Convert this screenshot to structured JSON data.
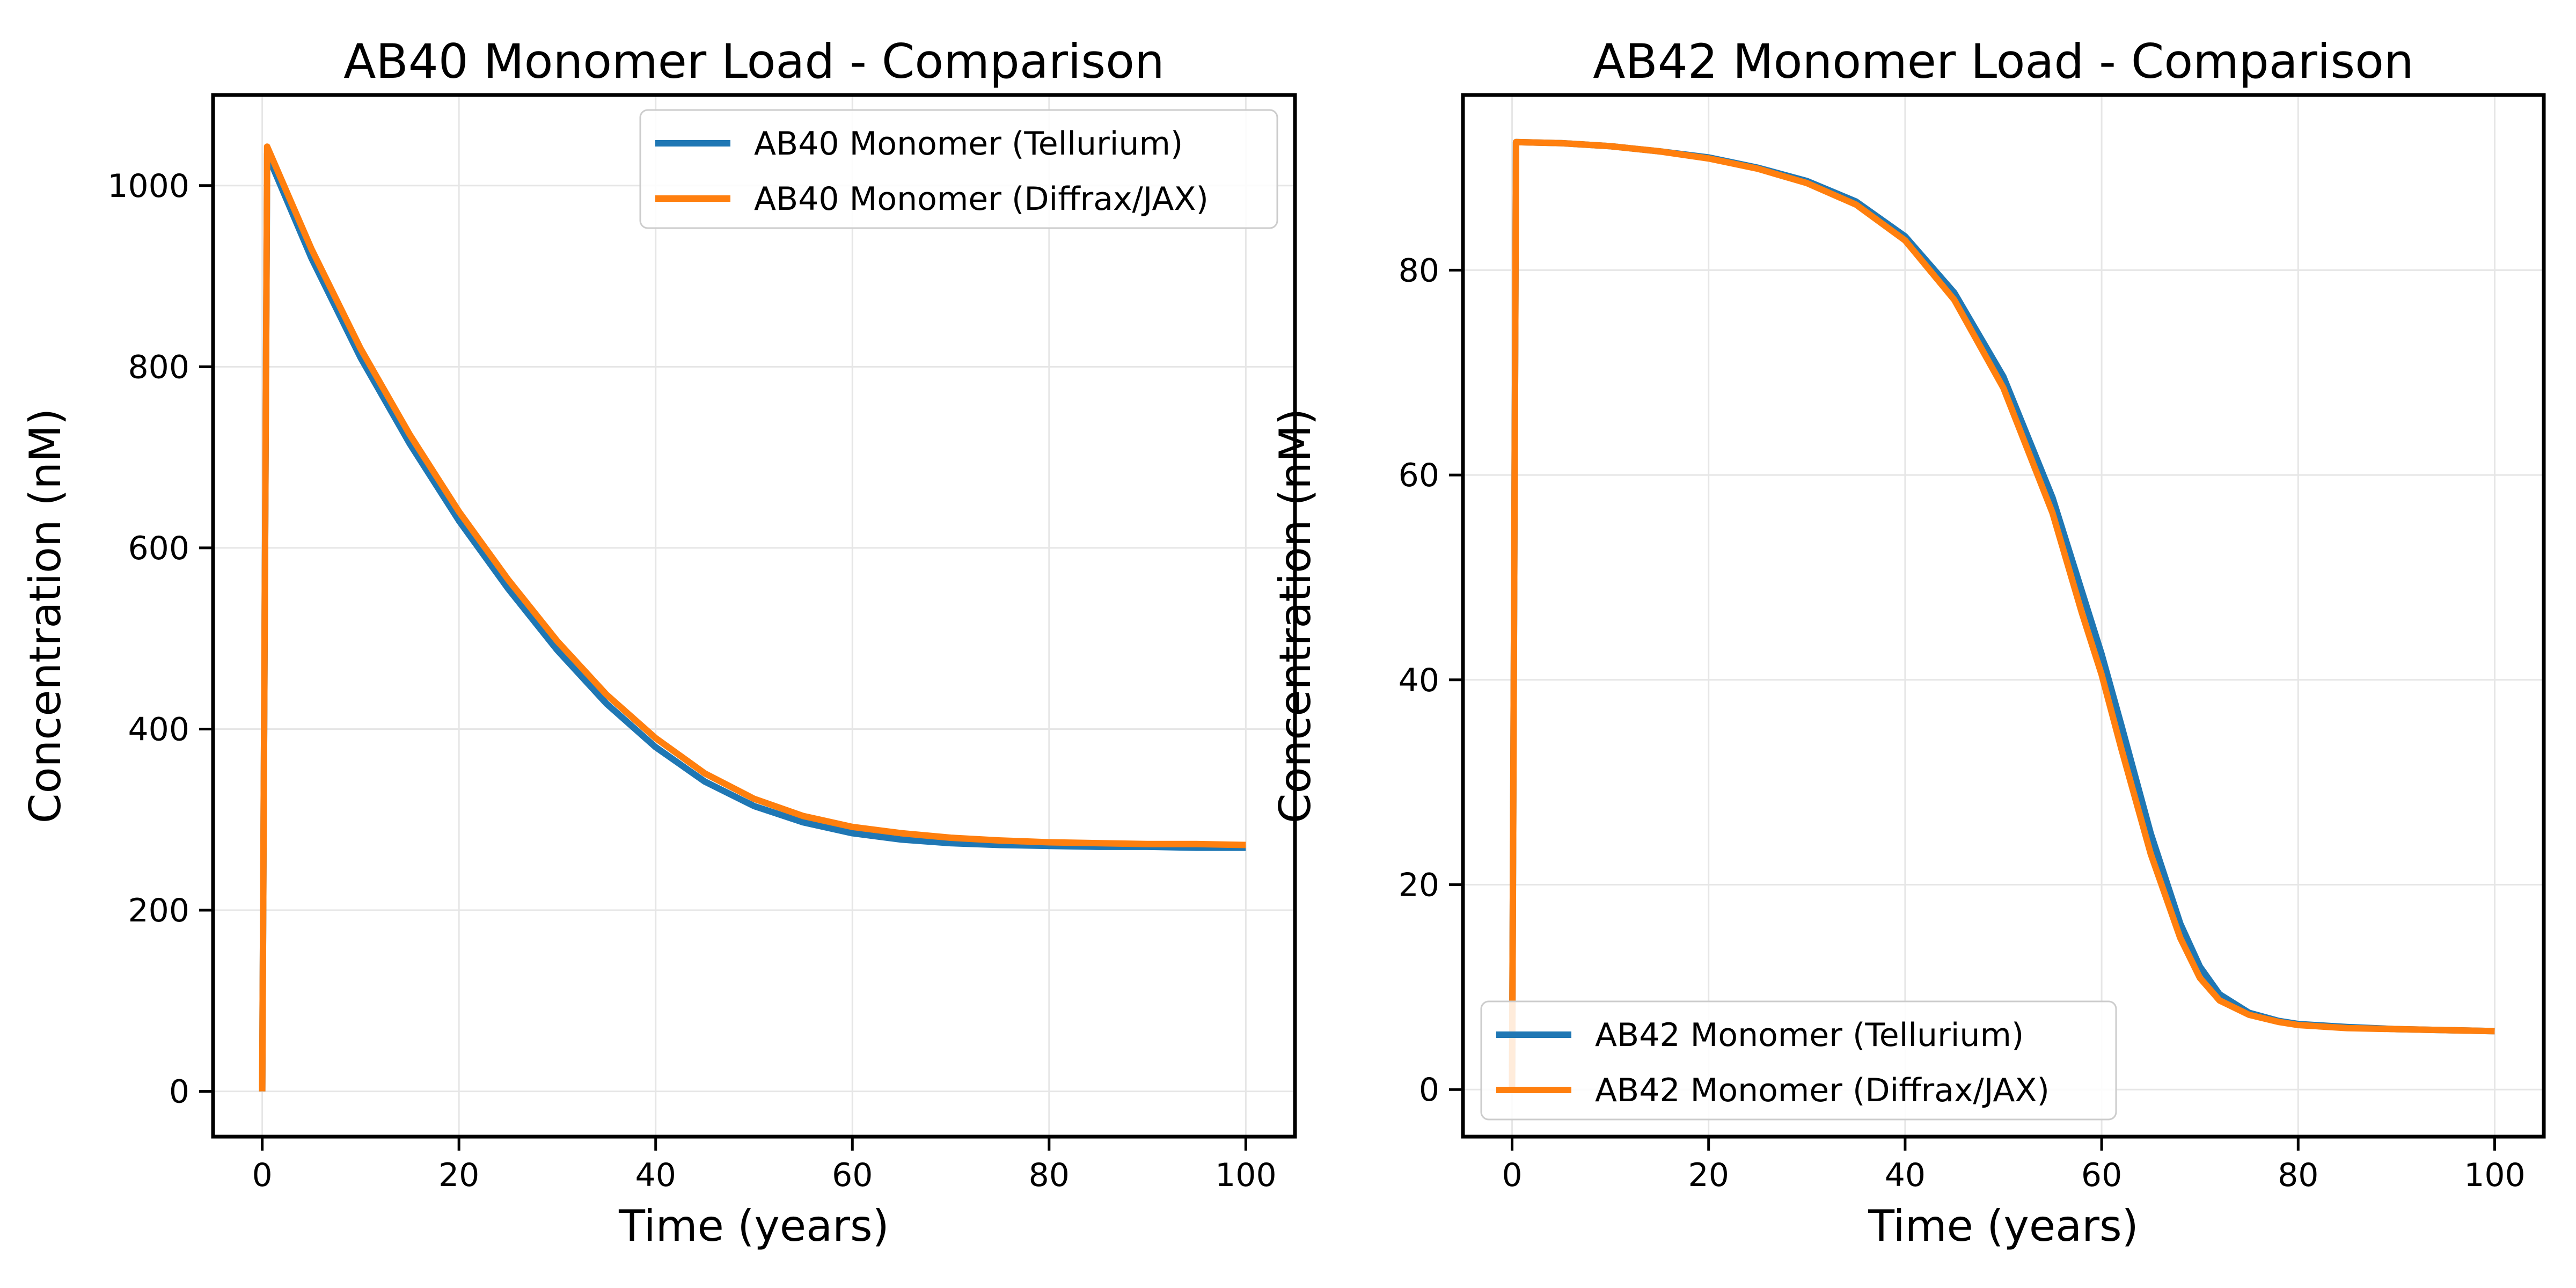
{
  "colors": {
    "tellurium": "#1f77b4",
    "diffrax": "#ff7f0e",
    "grid": "#e6e6e6",
    "axes": "#000000"
  },
  "chart_data": [
    {
      "type": "line",
      "title": "AB40 Monomer Load - Comparison",
      "xlabel": "Time (years)",
      "ylabel": "Concentration (nM)",
      "xlim": [
        -5,
        105
      ],
      "ylim": [
        -50,
        1100
      ],
      "xticks": [
        0,
        20,
        40,
        60,
        80,
        100
      ],
      "yticks": [
        0,
        200,
        400,
        600,
        800,
        1000
      ],
      "grid": true,
      "legend_position": "top-right",
      "series": [
        {
          "name": "AB40 Monomer (Tellurium)",
          "color": "#1f77b4",
          "x": [
            0,
            0.5,
            5,
            10,
            15,
            20,
            25,
            30,
            35,
            40,
            45,
            50,
            55,
            60,
            65,
            70,
            75,
            80,
            85,
            90,
            95,
            100
          ],
          "y": [
            0,
            1035,
            920,
            810,
            715,
            630,
            555,
            487,
            428,
            380,
            342,
            315,
            297,
            285,
            278,
            274,
            272,
            271,
            270,
            270,
            269,
            269
          ]
        },
        {
          "name": "AB40 Monomer (Diffrax/JAX)",
          "color": "#ff7f0e",
          "x": [
            0,
            0.5,
            5,
            10,
            15,
            20,
            25,
            30,
            35,
            40,
            45,
            50,
            55,
            60,
            65,
            70,
            75,
            80,
            85,
            90,
            95,
            100
          ],
          "y": [
            0,
            1043,
            930,
            820,
            725,
            640,
            565,
            497,
            438,
            390,
            351,
            323,
            304,
            292,
            285,
            280,
            277,
            275,
            274,
            273,
            273,
            272
          ]
        }
      ]
    },
    {
      "type": "line",
      "title": "AB42 Monomer Load - Comparison",
      "xlabel": "Time (years)",
      "ylabel": "Concentration (nM)",
      "xlim": [
        -5,
        105
      ],
      "ylim": [
        -4.6,
        97.1
      ],
      "xticks": [
        0,
        20,
        40,
        60,
        80,
        100
      ],
      "yticks": [
        0,
        20,
        40,
        60,
        80
      ],
      "grid": true,
      "legend_position": "bottom-left",
      "series": [
        {
          "name": "AB42 Monomer (Tellurium)",
          "color": "#1f77b4",
          "x": [
            0,
            0.4,
            5,
            10,
            15,
            20,
            25,
            30,
            35,
            40,
            45,
            50,
            55,
            58,
            60,
            62,
            65,
            68,
            70,
            72,
            75,
            78,
            80,
            85,
            90,
            95,
            100
          ],
          "y": [
            0,
            92.5,
            92.4,
            92.1,
            91.6,
            91.0,
            90.0,
            88.7,
            86.7,
            83.3,
            77.8,
            69.6,
            57.8,
            48.6,
            42.5,
            35.6,
            25.0,
            16.2,
            12.0,
            9.3,
            7.5,
            6.7,
            6.4,
            6.1,
            5.9,
            5.8,
            5.7
          ]
        },
        {
          "name": "AB42 Monomer (Diffrax/JAX)",
          "color": "#ff7f0e",
          "x": [
            0,
            0.4,
            5,
            10,
            15,
            20,
            25,
            30,
            35,
            40,
            45,
            50,
            55,
            58,
            60,
            62,
            65,
            68,
            70,
            72,
            75,
            78,
            80,
            85,
            90,
            95,
            100
          ],
          "y": [
            0,
            92.5,
            92.4,
            92.1,
            91.6,
            90.9,
            89.9,
            88.5,
            86.4,
            82.9,
            77.1,
            68.5,
            56.3,
            46.5,
            40.5,
            33.3,
            23.0,
            14.8,
            10.9,
            8.7,
            7.3,
            6.6,
            6.3,
            6.0,
            5.9,
            5.8,
            5.7
          ]
        }
      ]
    }
  ]
}
